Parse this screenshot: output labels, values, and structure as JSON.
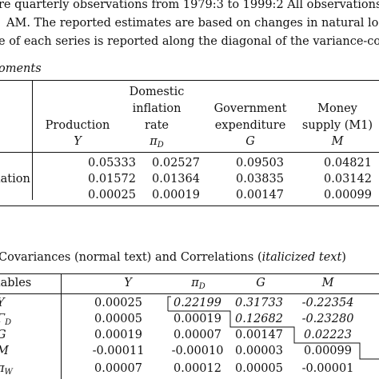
{
  "notes": {
    "line1": "re quarterly observations from 1979:3 to 1999:2 All observations are tak",
    "line2": "AM. The reported estimates are based on changes in natural logarithms o",
    "line3": "e of each series is reported along the diagonal of the variance-covariance m"
  },
  "panel_a": {
    "title": "oments",
    "headers": {
      "production": [
        "Production",
        "Y"
      ],
      "inflation": [
        "Domestic",
        "inflation",
        "rate",
        "πD"
      ],
      "government": [
        "Government",
        "expenditure",
        "G"
      ],
      "money": [
        "Money",
        "supply (M1)",
        "M"
      ]
    },
    "row_label": "iation",
    "rows": [
      [
        "0.05333",
        "0.02527",
        "0.09503",
        "0.04821"
      ],
      [
        "0.01572",
        "0.01364",
        "0.03835",
        "0.03142"
      ],
      [
        "0.00025",
        "0.00019",
        "0.00147",
        "0.00099"
      ]
    ]
  },
  "panel_b": {
    "title_prefix": "Covariances (normal text) and Correlations (",
    "title_italic": "italicized text",
    "title_suffix": ")",
    "col_header_label": "iables",
    "col_headers": [
      "Y",
      "πD",
      "G",
      "M"
    ],
    "row_labels": [
      "Y",
      "ΓD",
      "G",
      "M",
      "πW"
    ],
    "rows": [
      [
        "0.00025",
        "0.22199",
        "0.31733",
        "-0.22354"
      ],
      [
        "0.00005",
        "0.00019",
        "0.12682",
        "-0.23280"
      ],
      [
        "0.00019",
        "0.00007",
        "0.00147",
        "0.02223"
      ],
      [
        "-0.00011",
        "-0.00010",
        "0.00003",
        "0.00099"
      ],
      [
        "0.00007",
        "0.00012",
        "0.00005",
        "-0.00001"
      ]
    ],
    "italic_cells": [
      [
        0,
        1
      ],
      [
        0,
        2
      ],
      [
        0,
        3
      ],
      [
        1,
        2
      ],
      [
        1,
        3
      ],
      [
        2,
        3
      ]
    ]
  }
}
